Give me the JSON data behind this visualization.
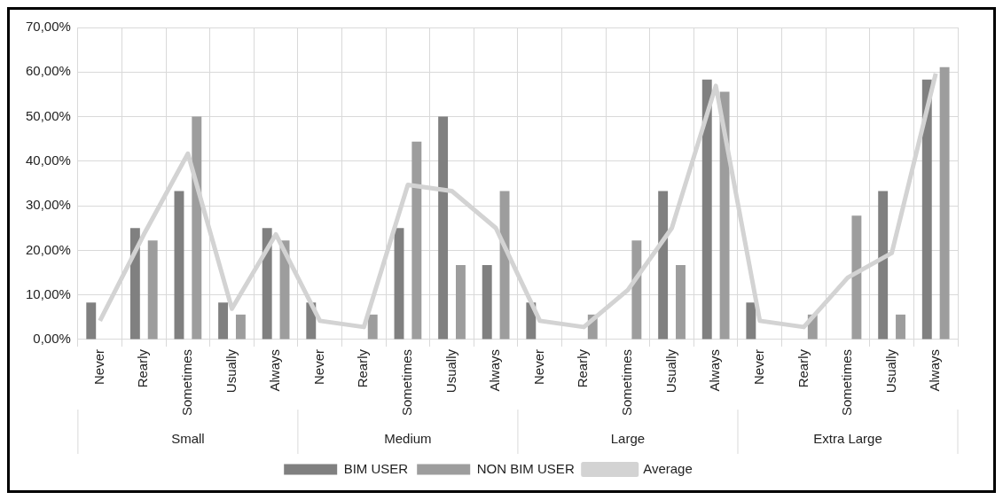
{
  "chart_data": {
    "type": "bar",
    "categories": [
      "Never",
      "Rearly",
      "Sometimes",
      "Usually",
      "Always",
      "Never",
      "Rearly",
      "Sometimes",
      "Usually",
      "Always",
      "Never",
      "Rearly",
      "Sometimes",
      "Usually",
      "Always",
      "Never",
      "Rearly",
      "Sometimes",
      "Usually",
      "Always"
    ],
    "series": [
      {
        "name": "BIM USER",
        "color": "#808080",
        "values": [
          8.3,
          25,
          33.3,
          8.3,
          25,
          8.3,
          0,
          25,
          50,
          16.7,
          8.3,
          0,
          0,
          33.3,
          58.3,
          8.3,
          0,
          0,
          33.3,
          58.3
        ]
      },
      {
        "name": "NON BIM USER",
        "color": "#9d9d9d",
        "values": [
          0,
          22.2,
          50,
          5.6,
          22.2,
          0,
          5.6,
          44.4,
          16.7,
          33.3,
          0,
          5.6,
          22.2,
          16.7,
          55.6,
          0,
          5.6,
          27.8,
          5.6,
          61.1
        ]
      },
      {
        "name": "Average",
        "type": "line",
        "color": "#d3d3d3",
        "marker": "none",
        "values": [
          4.2,
          23.6,
          41.7,
          6.9,
          23.6,
          4.2,
          2.8,
          34.7,
          33.3,
          25,
          4.2,
          2.8,
          11.1,
          25,
          56.9,
          4.2,
          2.8,
          13.9,
          19.4,
          59.7
        ]
      }
    ],
    "annotations": [
      "Small",
      "Medium",
      "Large",
      "Extra Large"
    ],
    "ylim": [
      0,
      70
    ],
    "yticks": [
      {
        "value": 0,
        "label": "0,00%"
      },
      {
        "value": 10,
        "label": "10,00%"
      },
      {
        "value": 20,
        "label": "20,00%"
      },
      {
        "value": 30,
        "label": "30,00%"
      },
      {
        "value": 40,
        "label": "40,00%"
      },
      {
        "value": 50,
        "label": "50,00%"
      },
      {
        "value": 60,
        "label": "60,00%"
      },
      {
        "value": 70,
        "label": "70,00%"
      }
    ],
    "grid": true,
    "legend": "bottom"
  }
}
